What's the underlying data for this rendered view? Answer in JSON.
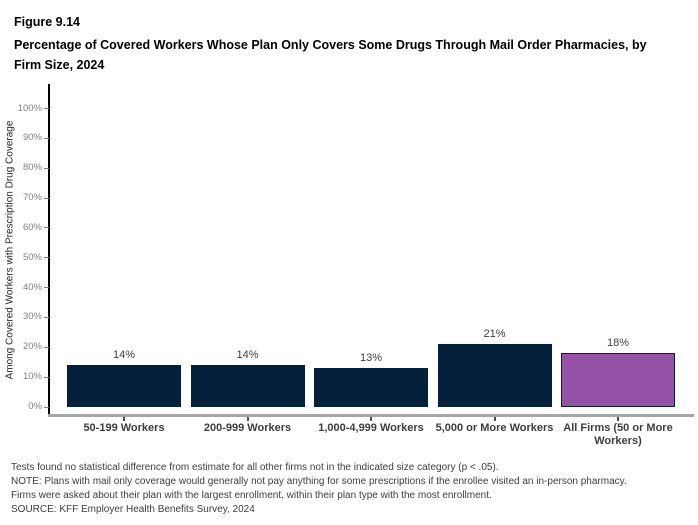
{
  "figure": {
    "number": "Figure 9.14",
    "title": "Percentage of Covered Workers Whose Plan Only Covers Some Drugs Through Mail Order Pharmacies, by Firm Size, 2024"
  },
  "chart_data": {
    "type": "bar",
    "title": "Percentage of Covered Workers Whose Plan Only Covers Some Drugs Through Mail Order Pharmacies, by Firm Size, 2024",
    "categories": [
      "50-199 Workers",
      "200-999 Workers",
      "1,000-4,999 Workers",
      "5,000 or More Workers",
      "All Firms (50 or More Workers)"
    ],
    "values": [
      14,
      14,
      13,
      21,
      18
    ],
    "value_labels": [
      "14%",
      "14%",
      "13%",
      "21%",
      "18%"
    ],
    "bar_colors": [
      "#05203A",
      "#05203A",
      "#05203A",
      "#05203A",
      "#9552A6"
    ],
    "bar_border_color": "#05203A",
    "xlabel": "",
    "ylabel": "Among Covered Workers with Prescription Drug Coverage",
    "ylim": [
      0,
      100
    ],
    "yticks": [
      0,
      10,
      20,
      30,
      40,
      50,
      60,
      70,
      80,
      90,
      100
    ],
    "ytick_labels": [
      "0%",
      "10%",
      "20%",
      "30%",
      "40%",
      "50%",
      "60%",
      "70%",
      "80%",
      "90%",
      "100%"
    ],
    "grid": false,
    "legend": "none"
  },
  "colors": {
    "navy": "#05203A",
    "purple": "#9552A6",
    "axis_baseline_gray": "#A6A6A6",
    "y_axis_black": "#000000",
    "tick_label_gray": "#7F7F7F",
    "label_text": "#3D3D3D"
  },
  "notes": {
    "stat": "Tests found no statistical difference from estimate for all other firms not in the indicated size category (p < .05).",
    "note": "NOTE: Plans with mail only coverage would generally not pay anything for some prescriptions if the enrollee visited an in-person pharmacy.  Firms were asked about their plan with the largest enrollment, within their plan type with the most enrollment.",
    "source": "SOURCE: KFF Employer Health Benefits Survey, 2024"
  }
}
